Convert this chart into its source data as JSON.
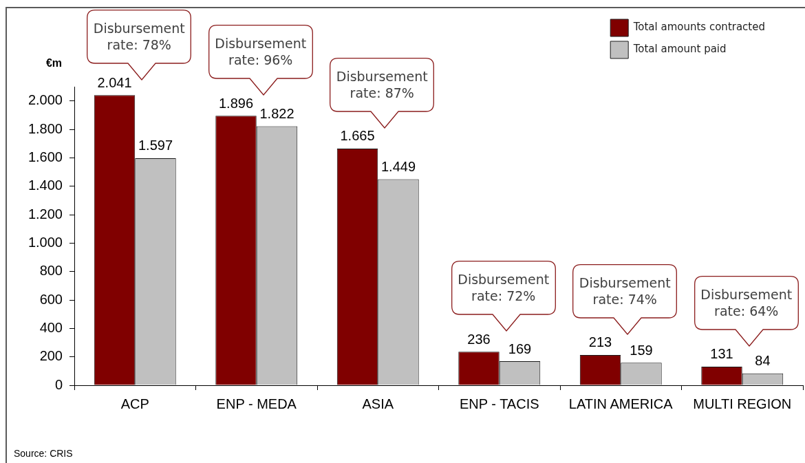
{
  "chart_data": {
    "type": "bar",
    "categories": [
      "ACP",
      "ENP - MEDA",
      "ASIA",
      "ENP - TACIS",
      "LATIN AMERICA",
      "MULTI REGION"
    ],
    "series": [
      {
        "name": "Total amounts contracted",
        "color": "#800000",
        "values": [
          2041,
          1896,
          1665,
          236,
          213,
          131
        ],
        "value_labels": [
          "2.041",
          "1.896",
          "1.665",
          "236",
          "213",
          "131"
        ]
      },
      {
        "name": "Total amount paid",
        "color": "#c0c0c0",
        "values": [
          1597,
          1822,
          1449,
          169,
          159,
          84
        ],
        "value_labels": [
          "1.597",
          "1.822",
          "1.449",
          "169",
          "159",
          "84"
        ]
      }
    ],
    "ylabel": "€m",
    "ylim": [
      0,
      2100
    ],
    "yticks": [
      0,
      200,
      400,
      600,
      800,
      {
        "value": 1000,
        "label": "1.000"
      },
      {
        "value": 1200,
        "label": "1.200"
      },
      {
        "value": 1400,
        "label": "1.400"
      },
      {
        "value": 1600,
        "label": "1.600"
      },
      {
        "value": 1800,
        "label": "1.800"
      },
      {
        "value": 2000,
        "label": "2.000"
      }
    ],
    "legend": "top right",
    "annotations": [
      "Disbursement rate: 78%",
      "Disbursement rate: 96%",
      "Disbursement rate: 87%",
      "Disbursement rate: 72%",
      "Disbursement rate: 74%",
      "Disbursement rate: 64%",
      "Source: CRIS"
    ]
  }
}
